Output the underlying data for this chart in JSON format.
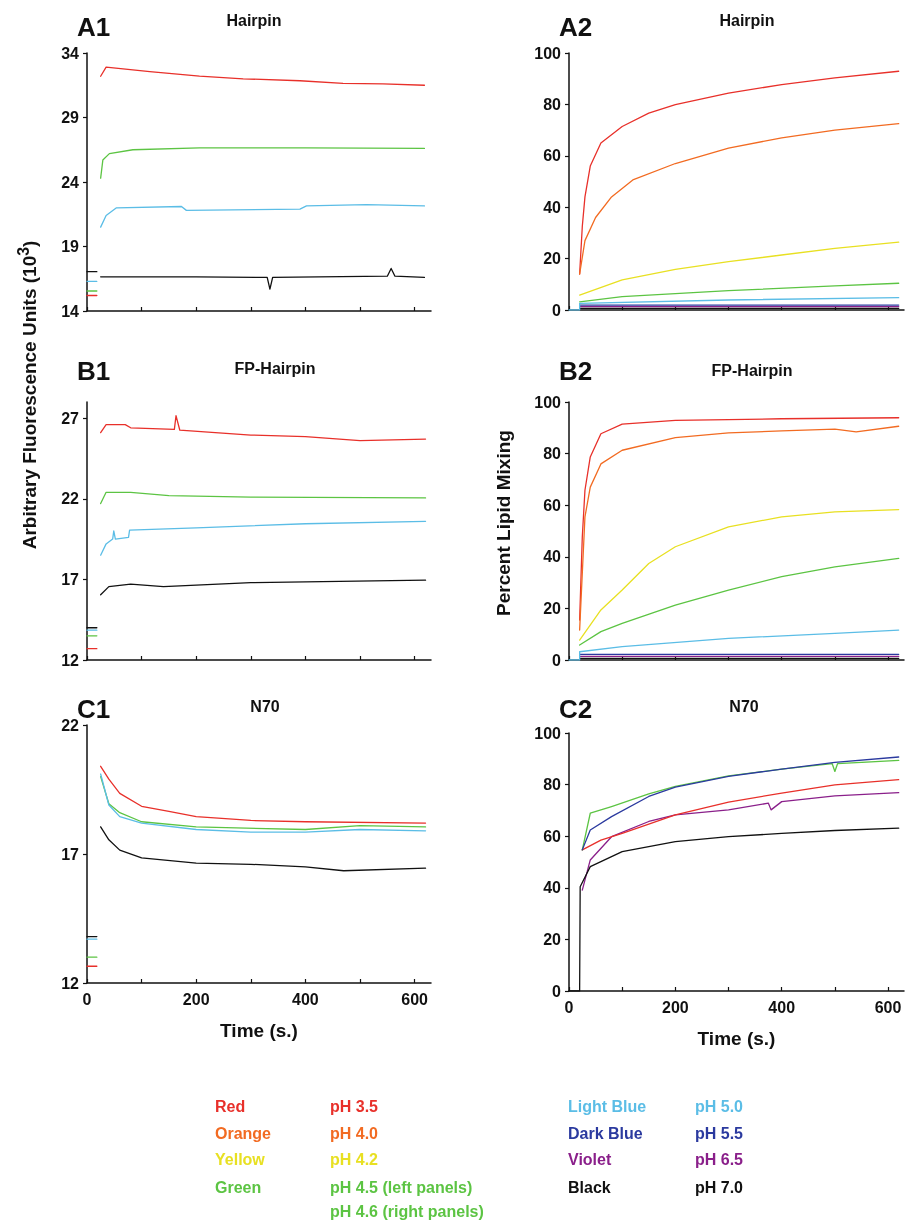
{
  "chart_data": [
    {
      "type": "line",
      "title": "Hairpin",
      "annotations": [
        "A1"
      ],
      "xlim": [
        0,
        630
      ],
      "xticks": [
        0,
        100,
        200,
        300,
        400,
        500,
        600
      ],
      "ylim": [
        14,
        34
      ],
      "yticks": [
        14,
        19,
        24,
        29,
        34
      ],
      "tick_labels": "y",
      "marker": "none",
      "series": [
        {
          "color": "#e8302a",
          "x": [
            0,
            18
          ],
          "values": [
            15.2,
            15.2
          ]
        },
        {
          "color": "#5cc443",
          "x": [
            0,
            18
          ],
          "values": [
            15.55,
            15.55
          ]
        },
        {
          "color": "#5bbde6",
          "x": [
            0,
            18
          ],
          "values": [
            16.3,
            16.3
          ]
        },
        {
          "color": "#111111",
          "x": [
            0,
            18
          ],
          "values": [
            17.05,
            17.05
          ]
        },
        {
          "color": "#e8302a",
          "x": [
            25,
            35,
            115,
            206,
            286,
            390,
            469,
            542,
            618
          ],
          "values": [
            32.2,
            32.9,
            32.55,
            32.2,
            32.0,
            31.85,
            31.65,
            31.6,
            31.5
          ]
        },
        {
          "color": "#5cc443",
          "x": [
            25,
            29,
            41,
            84,
            206,
            400,
            618
          ],
          "values": [
            24.3,
            25.7,
            26.2,
            26.5,
            26.65,
            26.65,
            26.6
          ]
        },
        {
          "color": "#5bbde6",
          "x": [
            25,
            35,
            54,
            173,
            182,
            390,
            402,
            512,
            618
          ],
          "values": [
            20.5,
            21.4,
            22.0,
            22.1,
            21.8,
            21.9,
            22.15,
            22.25,
            22.15
          ]
        },
        {
          "color": "#111111",
          "x": [
            25,
            200,
            330,
            335,
            340,
            550,
            557,
            564,
            618
          ],
          "values": [
            16.65,
            16.65,
            16.6,
            15.7,
            16.6,
            16.7,
            17.3,
            16.7,
            16.6
          ]
        }
      ]
    },
    {
      "type": "line",
      "title": "Hairpin",
      "annotations": [
        "A2"
      ],
      "xlim": [
        0,
        630
      ],
      "xticks": [
        0,
        100,
        200,
        300,
        400,
        500,
        600
      ],
      "ylim": [
        0,
        100
      ],
      "yticks": [
        0,
        20,
        40,
        60,
        80,
        100
      ],
      "tick_labels": "y",
      "marker": "none",
      "series": [
        {
          "color": "#e8302a",
          "x": [
            20,
            25,
            30,
            40,
            60,
            100,
            150,
            200,
            300,
            400,
            500,
            620
          ],
          "values": [
            14,
            32.5,
            44,
            56,
            65,
            71.4,
            76.6,
            79.9,
            84.4,
            87.7,
            90.3,
            92.9
          ]
        },
        {
          "color": "#f26b22",
          "x": [
            20,
            30,
            50,
            80,
            120,
            200,
            300,
            400,
            500,
            620
          ],
          "values": [
            14,
            27,
            36,
            44,
            50.6,
            57,
            63,
            67,
            70,
            72.5
          ]
        },
        {
          "color": "#e8e022",
          "x": [
            20,
            100,
            200,
            300,
            400,
            500,
            620
          ],
          "values": [
            5.8,
            11.7,
            15.8,
            18.8,
            21.4,
            24,
            26.4
          ]
        },
        {
          "color": "#5cc443",
          "x": [
            20,
            100,
            300,
            500,
            620
          ],
          "values": [
            3.2,
            5.2,
            7.5,
            9.4,
            10.4
          ]
        },
        {
          "color": "#2b3a9f",
          "x": [
            20,
            620
          ],
          "values": [
            1.9,
            1.9
          ]
        },
        {
          "color": "#8a1f8a",
          "x": [
            20,
            620
          ],
          "values": [
            1.3,
            1.3
          ]
        },
        {
          "color": "#111111",
          "x": [
            20,
            620
          ],
          "values": [
            0.6,
            0.6
          ]
        },
        {
          "color": "#5bbde6",
          "x": [
            0,
            20,
            20,
            300,
            620
          ],
          "values": [
            0,
            0,
            2.6,
            3.9,
            4.8
          ]
        }
      ]
    },
    {
      "type": "line",
      "title": "FP-Hairpin",
      "annotations": [
        "B1"
      ],
      "ylabel": "Arbitrary Fluorescence Units (10$^{3}$)",
      "xlim": [
        0,
        630
      ],
      "xticks": [
        0,
        100,
        200,
        300,
        400,
        500,
        600
      ],
      "ylim": [
        12,
        28
      ],
      "yticks": [
        12,
        17,
        22,
        27
      ],
      "tick_labels": "y",
      "marker": "none",
      "series": [
        {
          "color": "#e8302a",
          "x": [
            0,
            18
          ],
          "values": [
            12.7,
            12.7
          ]
        },
        {
          "color": "#5cc443",
          "x": [
            0,
            18
          ],
          "values": [
            13.5,
            13.5
          ]
        },
        {
          "color": "#5bbde6",
          "x": [
            0,
            18
          ],
          "values": [
            13.85,
            13.85
          ]
        },
        {
          "color": "#111111",
          "x": [
            0,
            18
          ],
          "values": [
            14.0,
            14.0
          ]
        },
        {
          "color": "#e8302a",
          "x": [
            25,
            35,
            70,
            80,
            160,
            163,
            170,
            300,
            400,
            500,
            620
          ],
          "values": [
            26.1,
            26.6,
            26.6,
            26.4,
            26.3,
            27.15,
            26.25,
            25.95,
            25.85,
            25.6,
            25.7
          ]
        },
        {
          "color": "#5cc443",
          "x": [
            25,
            35,
            80,
            150,
            300,
            620
          ],
          "values": [
            21.7,
            22.4,
            22.4,
            22.2,
            22.1,
            22.05
          ]
        },
        {
          "color": "#5bbde6",
          "x": [
            25,
            35,
            47,
            49,
            52,
            76,
            78,
            200,
            400,
            620
          ],
          "values": [
            18.5,
            19.2,
            19.5,
            20.0,
            19.5,
            19.6,
            20.05,
            20.2,
            20.45,
            20.6
          ]
        },
        {
          "color": "#111111",
          "x": [
            25,
            40,
            80,
            140,
            300,
            620
          ],
          "values": [
            16.05,
            16.55,
            16.7,
            16.55,
            16.8,
            16.95
          ]
        }
      ]
    },
    {
      "type": "line",
      "title": "FP-Hairpin",
      "annotations": [
        "B2"
      ],
      "ylabel": "Percent Lipid Mixing",
      "xlim": [
        0,
        630
      ],
      "xticks": [
        0,
        100,
        200,
        300,
        400,
        500,
        600
      ],
      "ylim": [
        0,
        100
      ],
      "yticks": [
        0,
        20,
        40,
        60,
        80,
        100
      ],
      "tick_labels": "y",
      "marker": "none",
      "series": [
        {
          "color": "#e8302a",
          "x": [
            20,
            25,
            30,
            40,
            60,
            100,
            200,
            400,
            620
          ],
          "values": [
            15.5,
            47.7,
            65.8,
            78.7,
            87.7,
            91.4,
            92.9,
            93.5,
            93.9
          ]
        },
        {
          "color": "#f26b22",
          "x": [
            20,
            30,
            40,
            60,
            100,
            200,
            300,
            400,
            500,
            540,
            620
          ],
          "values": [
            11.6,
            55.5,
            67,
            76,
            81.3,
            86.2,
            88,
            88.8,
            89.5,
            88.4,
            90.6
          ]
        },
        {
          "color": "#e8e022",
          "x": [
            20,
            60,
            100,
            150,
            200,
            300,
            400,
            500,
            620
          ],
          "values": [
            7.7,
            19.4,
            27.1,
            37.4,
            43.9,
            51.6,
            55.5,
            57.4,
            58.3
          ]
        },
        {
          "color": "#5cc443",
          "x": [
            20,
            60,
            100,
            200,
            300,
            400,
            500,
            620
          ],
          "values": [
            5.8,
            11,
            14.2,
            21.3,
            27.1,
            32.3,
            36.1,
            39.4
          ]
        },
        {
          "color": "#2b3a9f",
          "x": [
            20,
            620
          ],
          "values": [
            2.2,
            2.2
          ]
        },
        {
          "color": "#8a1f8a",
          "x": [
            20,
            620
          ],
          "values": [
            1.4,
            1.4
          ]
        },
        {
          "color": "#111111",
          "x": [
            20,
            620
          ],
          "values": [
            0.6,
            0.6
          ]
        },
        {
          "color": "#5bbde6",
          "x": [
            0,
            20,
            20,
            100,
            300,
            500,
            620
          ],
          "values": [
            0,
            0,
            3.2,
            5.2,
            8.4,
            10.3,
            11.6
          ]
        }
      ]
    },
    {
      "type": "line",
      "title": "N70",
      "annotations": [
        "C1"
      ],
      "xlabel": "Time (s.)",
      "xlim": [
        0,
        630
      ],
      "xticks": [
        0,
        {
          "value": 100,
          "label": null
        },
        200,
        {
          "value": 300,
          "label": null
        },
        400,
        {
          "value": 500,
          "label": null
        },
        600
      ],
      "ylim": [
        12,
        22
      ],
      "yticks": [
        12,
        17,
        22
      ],
      "marker": "none",
      "series": [
        {
          "color": "#e8302a",
          "x": [
            0,
            18
          ],
          "values": [
            12.65,
            12.65
          ]
        },
        {
          "color": "#5cc443",
          "x": [
            0,
            18
          ],
          "values": [
            13.0,
            13.0
          ]
        },
        {
          "color": "#111111",
          "x": [
            0,
            18
          ],
          "values": [
            13.8,
            13.8
          ]
        },
        {
          "color": "#5bbde6",
          "x": [
            0,
            18
          ],
          "values": [
            13.7,
            13.7
          ]
        },
        {
          "color": "#e8302a",
          "x": [
            25,
            40,
            60,
            100,
            150,
            200,
            300,
            400,
            620
          ],
          "values": [
            20.4,
            19.9,
            19.35,
            18.85,
            18.65,
            18.45,
            18.3,
            18.25,
            18.2
          ]
        },
        {
          "color": "#5cc443",
          "x": [
            25,
            40,
            60,
            100,
            200,
            400,
            500,
            620
          ],
          "values": [
            20.0,
            18.95,
            18.6,
            18.25,
            18.05,
            17.95,
            18.1,
            18.05
          ]
        },
        {
          "color": "#5bbde6",
          "x": [
            25,
            40,
            60,
            100,
            200,
            300,
            400,
            500,
            620
          ],
          "values": [
            20.1,
            18.9,
            18.45,
            18.2,
            17.95,
            17.85,
            17.85,
            17.95,
            17.9
          ]
        },
        {
          "color": "#111111",
          "x": [
            25,
            40,
            60,
            100,
            200,
            300,
            400,
            470,
            620
          ],
          "values": [
            18.05,
            17.55,
            17.15,
            16.85,
            16.65,
            16.6,
            16.5,
            16.35,
            16.45
          ]
        }
      ]
    },
    {
      "type": "line",
      "title": "N70",
      "annotations": [
        "C2"
      ],
      "xlabel": "Time (s.)",
      "xlim": [
        0,
        630
      ],
      "xticks": [
        0,
        {
          "value": 100,
          "label": null
        },
        200,
        {
          "value": 300,
          "label": null
        },
        400,
        {
          "value": 500,
          "label": null
        },
        600
      ],
      "ylim": [
        0,
        100
      ],
      "yticks": [
        0,
        20,
        40,
        60,
        80,
        100
      ],
      "marker": "none",
      "series": [
        {
          "color": "#8a1f8a",
          "x": [
            25,
            40,
            80,
            150,
            200,
            300,
            375,
            380,
            400,
            500,
            620
          ],
          "values": [
            39.1,
            50.8,
            59.8,
            65.7,
            68.3,
            70.2,
            72.8,
            70.2,
            73.4,
            75.6,
            76.9
          ]
        },
        {
          "color": "#e8302a",
          "x": [
            25,
            60,
            100,
            200,
            300,
            400,
            500,
            620
          ],
          "values": [
            54.7,
            58.5,
            61.1,
            68.3,
            73.2,
            76.7,
            79.9,
            81.9
          ]
        },
        {
          "color": "#5cc443",
          "x": [
            25,
            40,
            80,
            150,
            200,
            300,
            400,
            495,
            500,
            505,
            620
          ],
          "values": [
            54.7,
            68.9,
            71.5,
            76.4,
            79.3,
            83.4,
            86,
            88.1,
            85.1,
            88.1,
            89.4
          ]
        },
        {
          "color": "#2b3a9f",
          "x": [
            25,
            40,
            80,
            150,
            200,
            300,
            400,
            500,
            620
          ],
          "values": [
            54.7,
            62.4,
            67.6,
            75.4,
            79,
            83.2,
            86,
            88.6,
            90.7
          ]
        },
        {
          "color": "#111111",
          "x": [
            0,
            20,
            21,
            40,
            100,
            200,
            300,
            400,
            500,
            620
          ],
          "values": [
            0,
            0,
            40.4,
            48.2,
            54,
            57.9,
            59.8,
            61.1,
            62.2,
            63.1
          ]
        }
      ]
    },
    {
      "type": "other",
      "annotations": [
        "Red",
        "pH 3.5",
        "Orange",
        "pH 4.0",
        "Yellow",
        "pH 4.2",
        "Green",
        "pH 4.5 (left panels)",
        "pH 4.6 (right panels)",
        "Light Blue",
        "pH 5.0",
        "Dark Blue",
        "pH 5.5",
        "Violet",
        "pH 6.5",
        "Black",
        "pH 7.0"
      ],
      "colors": [
        "#e8302a",
        "#e8302a",
        "#f26b22",
        "#f26b22",
        "#e8e022",
        "#e8e022",
        "#5cc443",
        "#5cc443",
        "#5cc443",
        "#5bbde6",
        "#5bbde6",
        "#2b3a9f",
        "#2b3a9f",
        "#8a1f8a",
        "#8a1f8a",
        "#111111",
        "#111111"
      ]
    }
  ]
}
